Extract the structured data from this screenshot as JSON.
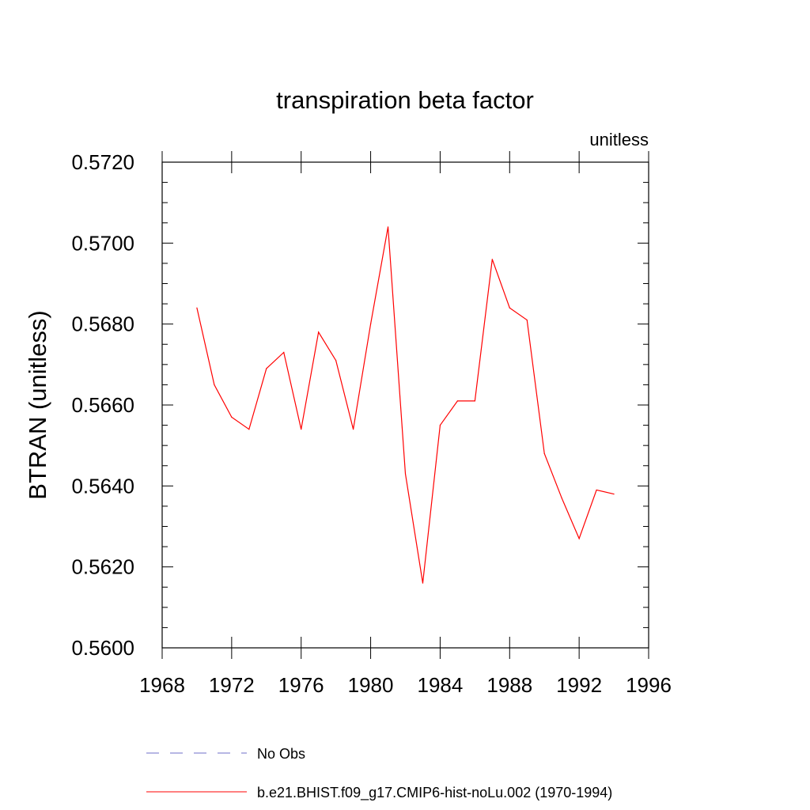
{
  "chart_data": {
    "type": "line",
    "title": "transpiration beta factor",
    "units_label": "unitless",
    "ylabel": "BTRAN  (unitless)",
    "xlabel": "",
    "xlim": [
      1968,
      1996
    ],
    "ylim": [
      0.56,
      0.572
    ],
    "x_ticks": [
      "1968",
      "1972",
      "1976",
      "1980",
      "1984",
      "1988",
      "1992",
      "1996"
    ],
    "y_ticks": [
      "0.5600",
      "0.5620",
      "0.5640",
      "0.5660",
      "0.5680",
      "0.5700",
      "0.5720"
    ],
    "x": [
      1970,
      1971,
      1972,
      1973,
      1974,
      1975,
      1976,
      1977,
      1978,
      1979,
      1980,
      1981,
      1982,
      1983,
      1984,
      1985,
      1986,
      1987,
      1988,
      1989,
      1990,
      1991,
      1992,
      1993,
      1994
    ],
    "series": [
      {
        "name": "b.e21.BHIST.f09_g17.CMIP6-hist-noLu.002 (1970-1994)",
        "color": "#ff0000",
        "values": [
          0.5684,
          0.5665,
          0.5657,
          0.5654,
          0.5669,
          0.5673,
          0.5654,
          0.5678,
          0.5671,
          0.5654,
          0.568,
          0.5704,
          0.5643,
          0.5616,
          0.5655,
          0.5661,
          0.5661,
          0.5696,
          0.5684,
          0.5681,
          0.5648,
          0.5637,
          0.5627,
          0.5639,
          0.5638
        ]
      }
    ],
    "legend": [
      {
        "label": "No Obs",
        "color": "#6f6fc8",
        "style": "dashed"
      },
      {
        "label": "b.e21.BHIST.f09_g17.CMIP6-hist-noLu.002 (1970-1994)",
        "color": "#ff0000",
        "style": "solid"
      }
    ],
    "grid": false,
    "legend_placement": "bottom"
  }
}
